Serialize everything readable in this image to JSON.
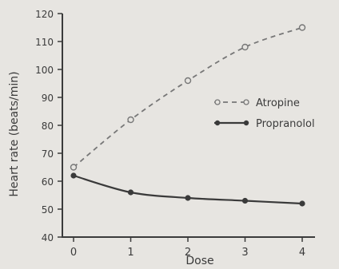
{
  "chart_data": {
    "type": "line",
    "title": "",
    "xlabel": "Dose",
    "ylabel": "Heart rate (beats/min)",
    "xlim": [
      0,
      4
    ],
    "ylim": [
      40,
      120
    ],
    "xticks": [
      "0",
      "1",
      "2",
      "3",
      "4"
    ],
    "yticks": [
      "40",
      "50",
      "60",
      "70",
      "80",
      "90",
      "100",
      "110",
      "120"
    ],
    "grid": false,
    "legend_position": "right",
    "series": [
      {
        "name": "Atropine",
        "style": "dashed",
        "marker": "open-circle",
        "x": [
          0,
          1,
          2,
          3,
          4
        ],
        "y": [
          65,
          82,
          96,
          108,
          115
        ]
      },
      {
        "name": "Propranolol",
        "style": "solid",
        "marker": "filled-circle",
        "x": [
          0,
          1,
          2,
          3,
          4
        ],
        "y": [
          62,
          56,
          54,
          53,
          52
        ]
      }
    ]
  }
}
